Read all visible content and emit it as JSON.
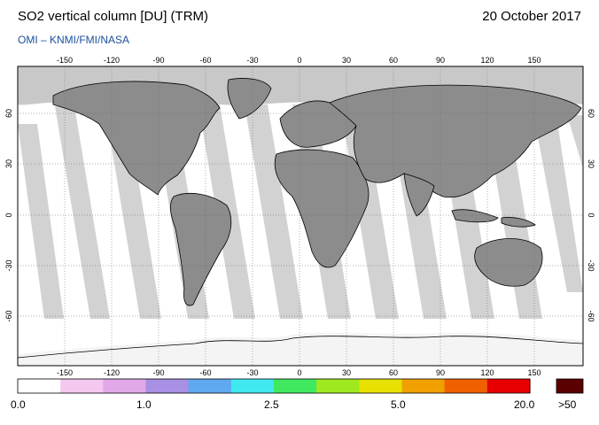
{
  "header": {
    "title": "SO2 vertical column [DU] (TRM)",
    "date": "20 October 2017",
    "credit": "OMI  –  KNMI/FMI/NASA"
  },
  "map": {
    "lon_ticks": [
      "-150",
      "-120",
      "-90",
      "-60",
      "-30",
      "0",
      "30",
      "60",
      "90",
      "120",
      "150"
    ],
    "lat_ticks": [
      "60",
      "30",
      "0",
      "-30",
      "-60"
    ],
    "colors": {
      "ocean": "#ffffff",
      "land": "#8c8c8c",
      "swath_gap": "#d2d2d2",
      "polar": "#c8c8c8"
    }
  },
  "colorbar": {
    "labels": [
      "0.0",
      "1.0",
      "2.5",
      "5.0",
      "20.0",
      ">50"
    ],
    "colors": [
      "#ffffff",
      "#f4c8f0",
      "#e2a8e8",
      "#a890e4",
      "#60a8f0",
      "#40e8f0",
      "#40e860",
      "#a0e820",
      "#e8e000",
      "#f0a000",
      "#f06000",
      "#e80000"
    ],
    "overflow_color": "#5a0000"
  }
}
